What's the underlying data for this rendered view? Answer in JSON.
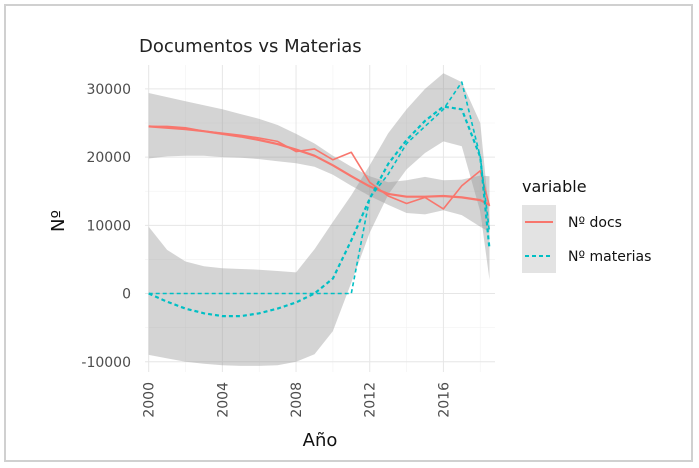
{
  "chart_data": {
    "type": "line",
    "title": "Documentos vs Materias",
    "xlabel": "Año",
    "ylabel": "Nº",
    "x_ticks": [
      2000,
      2004,
      2008,
      2012,
      2016
    ],
    "y_ticks": [
      -10000,
      0,
      10000,
      20000,
      30000
    ],
    "xlim": [
      1999.8,
      2018.8
    ],
    "ylim": [
      -11500,
      33500
    ],
    "grid": true,
    "legend_position": "right",
    "legend_title": "variable",
    "x": [
      2000,
      2001,
      2002,
      2003,
      2004,
      2005,
      2006,
      2007,
      2008,
      2009,
      2010,
      2011,
      2012,
      2013,
      2014,
      2015,
      2016,
      2017,
      2018,
      2018.5
    ],
    "series": [
      {
        "name": "Nº docs",
        "color": "#F8766D",
        "linetype": "solid",
        "values": [
          24500,
          24500,
          24300,
          23800,
          23500,
          23200,
          22800,
          22300,
          20800,
          21200,
          19600,
          20700,
          16300,
          14300,
          13200,
          14100,
          12400,
          15800,
          18000,
          12800
        ],
        "smooth": [
          24500,
          24300,
          24100,
          23800,
          23400,
          23000,
          22500,
          21900,
          21100,
          20200,
          18800,
          17200,
          15700,
          14600,
          14200,
          14200,
          14300,
          14100,
          13700,
          13000
        ],
        "band_lower": [
          19800,
          20100,
          20200,
          20200,
          20000,
          19900,
          19700,
          19400,
          19100,
          18600,
          17400,
          15800,
          14300,
          13000,
          11800,
          11600,
          12200,
          11500,
          9800,
          9000
        ],
        "band_upper": [
          29400,
          28800,
          28200,
          27600,
          27000,
          26300,
          25600,
          24700,
          23400,
          22000,
          20200,
          18600,
          17200,
          16300,
          16600,
          17100,
          16600,
          16700,
          17300,
          17200
        ]
      },
      {
        "name": "Nº materias",
        "color": "#00BFC4",
        "linetype": "dashed",
        "values": [
          0,
          0,
          0,
          0,
          0,
          0,
          0,
          0,
          0,
          0,
          0,
          0,
          14000,
          17500,
          22000,
          24500,
          27000,
          31000,
          20000,
          9000
        ],
        "smooth": [
          0,
          -1200,
          -2200,
          -2900,
          -3300,
          -3300,
          -2900,
          -2200,
          -1300,
          0,
          2200,
          7800,
          13900,
          19000,
          22500,
          25300,
          27400,
          27000,
          20000,
          6500
        ],
        "band_lower": [
          -9000,
          -9500,
          -10000,
          -10300,
          -10500,
          -10600,
          -10600,
          -10500,
          -10000,
          -8900,
          -5500,
          1600,
          8900,
          14500,
          18200,
          20600,
          22300,
          21600,
          12000,
          2000
        ],
        "band_upper": [
          9800,
          6400,
          4700,
          4000,
          3700,
          3600,
          3500,
          3300,
          3100,
          6500,
          10500,
          14400,
          18800,
          23500,
          27000,
          30000,
          32300,
          31000,
          25000,
          11000
        ]
      }
    ]
  }
}
